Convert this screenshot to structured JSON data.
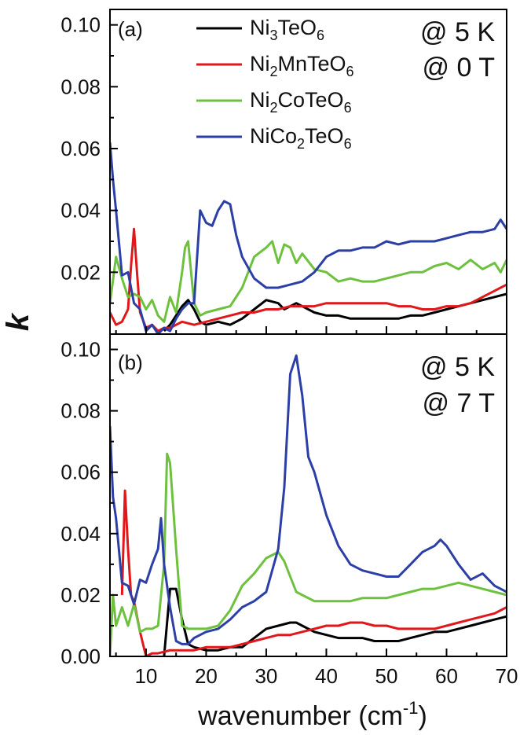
{
  "figure": {
    "ylabel": "k",
    "xlabel": "wavenumber (cm-1)",
    "xlabel_main": "wavenumber (cm",
    "xlabel_sup": "-1",
    "xlabel_close": ")"
  },
  "legend": [
    {
      "base": "Ni",
      "sub1": "3",
      "mid": "TeO",
      "sub2": "6",
      "full": "Ni3TeO6",
      "color": "#000000"
    },
    {
      "base": "Ni",
      "sub1": "2",
      "mid": "MnTeO",
      "sub2": "6",
      "full": "Ni2MnTeO6",
      "color": "#e0181c"
    },
    {
      "base": "Ni",
      "sub1": "2",
      "mid": "CoTeO",
      "sub2": "6",
      "full": "Ni2CoTeO6",
      "color": "#6ec13e"
    },
    {
      "base": "NiCo",
      "sub1": "2",
      "mid": "TeO",
      "sub2": "6",
      "full": "NiCo2TeO6",
      "color": "#2c3fa6"
    }
  ],
  "chart_data": [
    {
      "type": "line",
      "panel": "(a)",
      "conditions": [
        "@ 5 K",
        "@ 0 T"
      ],
      "xlabel": "wavenumber (cm-1)",
      "ylabel": "k",
      "xlim": [
        4,
        70
      ],
      "ylim": [
        0,
        0.105
      ],
      "xticks": [
        10,
        20,
        30,
        40,
        50,
        60,
        70
      ],
      "yticks": [
        0.02,
        0.04,
        0.06,
        0.08,
        0.1
      ],
      "ytick_labels": [
        "0.02",
        "0.04",
        "0.06",
        "0.08",
        "0.10"
      ],
      "series": [
        {
          "name": "Ni3TeO6",
          "color": "#000000",
          "x": [
            13,
            14,
            15,
            16,
            17,
            18,
            19,
            20,
            22,
            24,
            26,
            28,
            30,
            32,
            33,
            34,
            35,
            36,
            38,
            40,
            42,
            44,
            46,
            48,
            50,
            52,
            54,
            56,
            58,
            60,
            62,
            64,
            66,
            68,
            70
          ],
          "y": [
            0.001,
            0.003,
            0.006,
            0.009,
            0.011,
            0.008,
            0.004,
            0.003,
            0.004,
            0.003,
            0.005,
            0.008,
            0.011,
            0.01,
            0.008,
            0.009,
            0.01,
            0.009,
            0.007,
            0.006,
            0.006,
            0.005,
            0.005,
            0.005,
            0.005,
            0.005,
            0.006,
            0.006,
            0.007,
            0.008,
            0.009,
            0.01,
            0.011,
            0.012,
            0.013
          ]
        },
        {
          "name": "Ni2MnTeO6",
          "color": "#e0181c",
          "x": [
            4,
            5,
            6,
            7,
            7.5,
            8,
            8.5,
            9,
            10,
            11,
            12,
            13,
            14,
            15,
            16,
            18,
            20,
            22,
            24,
            26,
            28,
            30,
            32,
            34,
            36,
            38,
            40,
            42,
            44,
            46,
            48,
            50,
            52,
            54,
            56,
            58,
            60,
            62,
            64,
            66,
            68,
            70
          ],
          "y": [
            0.007,
            0.003,
            0.004,
            0.008,
            0.022,
            0.034,
            0.02,
            0.007,
            0.002,
            0.003,
            0.001,
            0.002,
            0.002,
            0.003,
            0.004,
            0.003,
            0.004,
            0.005,
            0.006,
            0.007,
            0.007,
            0.008,
            0.008,
            0.009,
            0.009,
            0.009,
            0.01,
            0.01,
            0.01,
            0.01,
            0.01,
            0.01,
            0.009,
            0.009,
            0.008,
            0.008,
            0.009,
            0.009,
            0.01,
            0.012,
            0.014,
            0.016
          ]
        },
        {
          "name": "Ni2CoTeO6",
          "color": "#6ec13e",
          "x": [
            4,
            5,
            6,
            7,
            8,
            9,
            10,
            11,
            12,
            13,
            14,
            15,
            16,
            16.5,
            17,
            18,
            19,
            20,
            22,
            24,
            26,
            28,
            30,
            31,
            32,
            33,
            34,
            35,
            36,
            38,
            40,
            42,
            44,
            46,
            48,
            50,
            52,
            54,
            56,
            58,
            60,
            62,
            64,
            66,
            68,
            69,
            70
          ],
          "y": [
            0.01,
            0.025,
            0.018,
            0.012,
            0.013,
            0.012,
            0.008,
            0.011,
            0.006,
            0.004,
            0.012,
            0.007,
            0.02,
            0.028,
            0.03,
            0.01,
            0.006,
            0.007,
            0.008,
            0.009,
            0.015,
            0.025,
            0.028,
            0.03,
            0.023,
            0.029,
            0.028,
            0.023,
            0.026,
            0.021,
            0.02,
            0.017,
            0.018,
            0.017,
            0.017,
            0.018,
            0.019,
            0.02,
            0.02,
            0.022,
            0.023,
            0.021,
            0.024,
            0.021,
            0.023,
            0.02,
            0.024
          ]
        },
        {
          "name": "NiCo2TeO6",
          "color": "#2c3fa6",
          "x": [
            4,
            4.5,
            5,
            6,
            7,
            8,
            9,
            10,
            11,
            12,
            13,
            14,
            15,
            16,
            17,
            18,
            19,
            20,
            21,
            22,
            23,
            24,
            25,
            26,
            28,
            30,
            32,
            34,
            36,
            38,
            40,
            42,
            44,
            46,
            48,
            50,
            52,
            54,
            56,
            58,
            60,
            62,
            64,
            66,
            68,
            69,
            70
          ],
          "y": [
            0.062,
            0.05,
            0.04,
            0.019,
            0.02,
            0.01,
            0.008,
            0.001,
            0.003,
            0.0,
            0.002,
            0.001,
            0.005,
            0.008,
            0.01,
            0.01,
            0.04,
            0.036,
            0.035,
            0.04,
            0.043,
            0.042,
            0.032,
            0.025,
            0.018,
            0.015,
            0.015,
            0.016,
            0.017,
            0.02,
            0.025,
            0.027,
            0.027,
            0.028,
            0.028,
            0.03,
            0.029,
            0.03,
            0.03,
            0.03,
            0.031,
            0.032,
            0.033,
            0.033,
            0.034,
            0.037,
            0.034
          ]
        }
      ]
    },
    {
      "type": "line",
      "panel": "(b)",
      "conditions": [
        "@ 5 K",
        "@ 7 T"
      ],
      "xlabel": "wavenumber (cm-1)",
      "ylabel": "k",
      "xlim": [
        4,
        70
      ],
      "ylim": [
        0,
        0.105
      ],
      "xticks": [
        10,
        20,
        30,
        40,
        50,
        60,
        70
      ],
      "xtick_labels": [
        "10",
        "20",
        "30",
        "40",
        "50",
        "60",
        "70"
      ],
      "yticks": [
        0,
        0.02,
        0.04,
        0.06,
        0.08,
        0.1
      ],
      "ytick_labels": [
        "0.00",
        "0.02",
        "0.04",
        "0.06",
        "0.08",
        "0.10"
      ],
      "series": [
        {
          "name": "Ni3TeO6",
          "color": "#000000",
          "x": [
            13,
            14,
            15,
            16,
            17,
            18,
            20,
            22,
            24,
            26,
            28,
            30,
            32,
            34,
            35,
            36,
            38,
            40,
            42,
            44,
            46,
            48,
            50,
            52,
            54,
            56,
            58,
            60,
            62,
            64,
            66,
            68,
            70
          ],
          "y": [
            0.0,
            0.022,
            0.022,
            0.012,
            0.004,
            0.003,
            0.002,
            0.002,
            0.003,
            0.003,
            0.006,
            0.009,
            0.01,
            0.011,
            0.011,
            0.01,
            0.008,
            0.007,
            0.006,
            0.006,
            0.006,
            0.005,
            0.005,
            0.005,
            0.006,
            0.007,
            0.008,
            0.008,
            0.009,
            0.01,
            0.011,
            0.012,
            0.013
          ]
        },
        {
          "name": "Ni2MnTeO6",
          "color": "#e0181c",
          "x": [
            6,
            6.5,
            7,
            7.5,
            8,
            9,
            10,
            11,
            12,
            14,
            16,
            18,
            20,
            22,
            24,
            26,
            28,
            30,
            32,
            34,
            36,
            38,
            40,
            42,
            44,
            46,
            48,
            50,
            52,
            54,
            56,
            58,
            60,
            62,
            64,
            66,
            68,
            70
          ],
          "y": [
            0.02,
            0.054,
            0.035,
            0.02,
            0.018,
            0.008,
            0.0,
            0.001,
            0.001,
            0.002,
            0.002,
            0.002,
            0.003,
            0.003,
            0.003,
            0.004,
            0.005,
            0.006,
            0.007,
            0.007,
            0.008,
            0.009,
            0.01,
            0.01,
            0.011,
            0.011,
            0.01,
            0.01,
            0.009,
            0.009,
            0.009,
            0.009,
            0.01,
            0.011,
            0.012,
            0.013,
            0.014,
            0.016
          ]
        },
        {
          "name": "Ni2CoTeO6",
          "color": "#6ec13e",
          "x": [
            4,
            4.5,
            5,
            6,
            7,
            8,
            9,
            10,
            11,
            12,
            13,
            13.5,
            14,
            15,
            16,
            17,
            18,
            20,
            22,
            24,
            26,
            28,
            30,
            31,
            32,
            33,
            34,
            35,
            36,
            38,
            40,
            42,
            44,
            46,
            48,
            50,
            52,
            54,
            56,
            58,
            60,
            62,
            64,
            66,
            68,
            70
          ],
          "y": [
            0.0,
            0.02,
            0.01,
            0.016,
            0.01,
            0.017,
            0.008,
            0.009,
            0.009,
            0.01,
            0.03,
            0.066,
            0.063,
            0.035,
            0.01,
            0.009,
            0.009,
            0.009,
            0.01,
            0.015,
            0.023,
            0.027,
            0.032,
            0.033,
            0.034,
            0.031,
            0.026,
            0.021,
            0.02,
            0.018,
            0.018,
            0.018,
            0.018,
            0.019,
            0.019,
            0.019,
            0.02,
            0.021,
            0.022,
            0.022,
            0.023,
            0.024,
            0.023,
            0.022,
            0.021,
            0.02
          ]
        },
        {
          "name": "NiCo2TeO6",
          "color": "#2c3fa6",
          "x": [
            4,
            4.5,
            5,
            6,
            7,
            8,
            9,
            10,
            11,
            12,
            12.5,
            13,
            14,
            15,
            16,
            17,
            18,
            20,
            22,
            24,
            26,
            28,
            30,
            32,
            33,
            34,
            35,
            36,
            37,
            38,
            40,
            42,
            44,
            46,
            48,
            50,
            52,
            54,
            56,
            58,
            59,
            60,
            62,
            64,
            66,
            68,
            69,
            70
          ],
          "y": [
            0.075,
            0.052,
            0.045,
            0.024,
            0.023,
            0.017,
            0.025,
            0.024,
            0.03,
            0.035,
            0.045,
            0.03,
            0.016,
            0.005,
            0.004,
            0.004,
            0.006,
            0.008,
            0.009,
            0.012,
            0.016,
            0.018,
            0.021,
            0.035,
            0.055,
            0.092,
            0.098,
            0.085,
            0.065,
            0.06,
            0.046,
            0.036,
            0.03,
            0.028,
            0.027,
            0.026,
            0.026,
            0.03,
            0.034,
            0.036,
            0.038,
            0.036,
            0.03,
            0.025,
            0.027,
            0.023,
            0.022,
            0.021
          ]
        }
      ]
    }
  ]
}
